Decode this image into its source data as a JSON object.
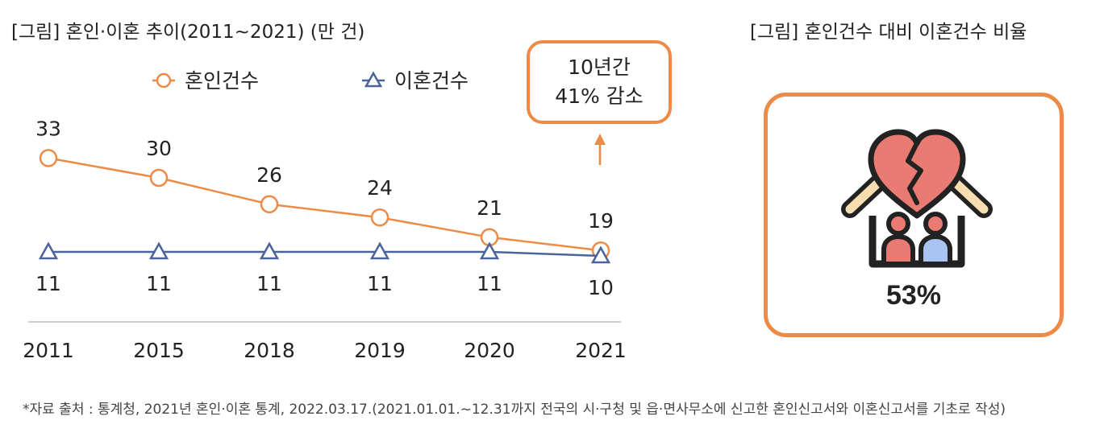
{
  "left_title": "[그림] 혼인·이혼 추이(2011~2021) (만 건)",
  "right_title": "[그림] 혼인건수 대비 이혼건수 비율",
  "callout": {
    "line1": "10년간",
    "line2": "41% 감소"
  },
  "ratio": {
    "value": "53%"
  },
  "source": "*자료 출처 : 통계청, 2021년 혼인·이혼 통계, 2022.03.17.(2021.01.01.~12.31까지 전국의 시·구청 및 읍·면사무소에 신고한 혼인신고서와 이혼신고서를 기초로 작성)",
  "colors": {
    "marriage": "#ED8A46",
    "divorce": "#4A6399",
    "accent": "#ED8A46"
  },
  "chart_data": {
    "type": "line",
    "title": "[그림] 혼인·이혼 추이(2011~2021) (만 건)",
    "categories": [
      "2011",
      "2015",
      "2018",
      "2019",
      "2020",
      "2021"
    ],
    "series": [
      {
        "name": "혼인건수",
        "values": [
          33,
          30,
          26,
          24,
          21,
          19
        ],
        "labels": [
          "33",
          "30",
          "26",
          "24",
          "21",
          "19"
        ],
        "color": "#ED8A46",
        "marker": "circle"
      },
      {
        "name": "이혼건수",
        "values": [
          11,
          11,
          11,
          11,
          11,
          10
        ],
        "labels": [
          "11",
          "11",
          "11",
          "11",
          "11",
          "10"
        ],
        "color": "#4A6399",
        "marker": "triangle"
      }
    ],
    "xlabel": "",
    "ylabel": "만 건",
    "legend_position": "top",
    "grid": false
  }
}
